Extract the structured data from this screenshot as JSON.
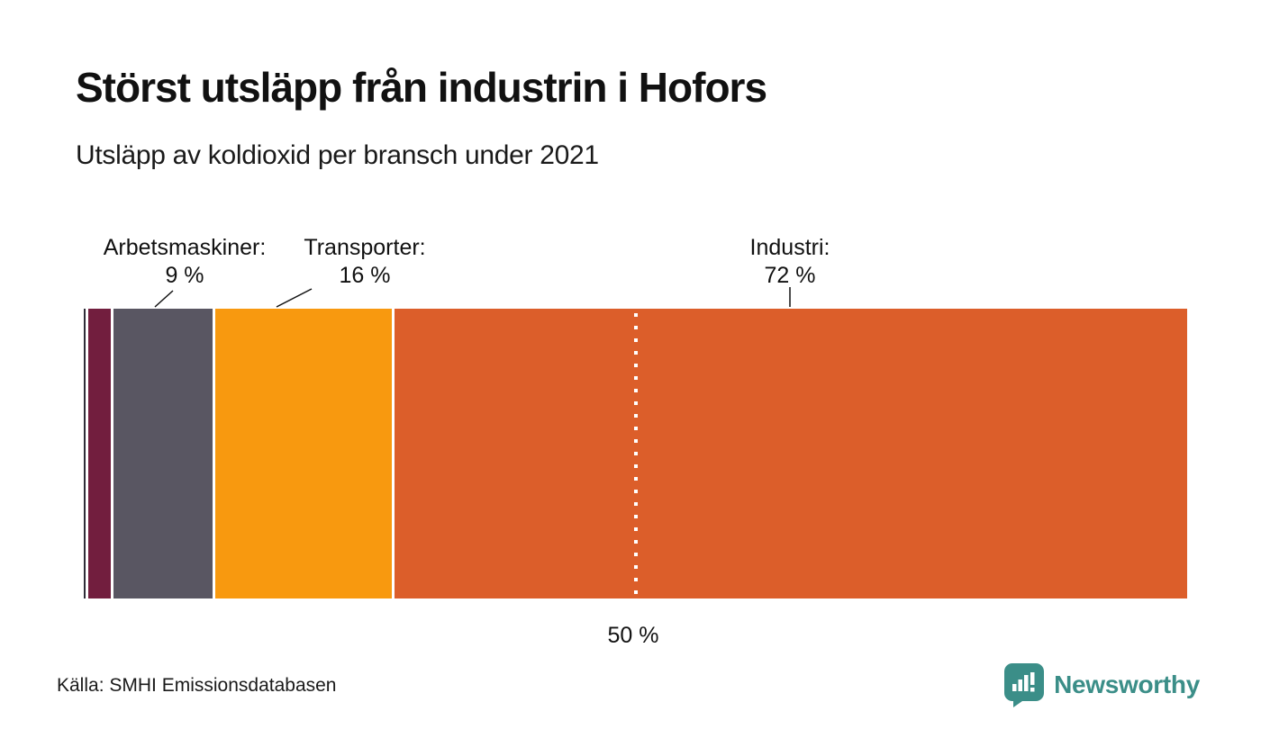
{
  "chart": {
    "title": "Störst utsläpp från industrin i Hofors",
    "subtitle": "Utsläpp av koldioxid per bransch under 2021",
    "reference_label": "50 %",
    "source": "Källa: SMHI Emissionsdatabasen"
  },
  "branding": {
    "name": "Newsworthy",
    "color": "#3b8e88"
  },
  "chart_data": {
    "type": "bar",
    "variant": "horizontal-stacked-single-bar",
    "title": "Störst utsläpp från industrin i Hofors",
    "subtitle": "Utsläpp av koldioxid per bransch under 2021",
    "unit": "%",
    "xlim": [
      0,
      100
    ],
    "segments": [
      {
        "label": null,
        "value": 0.2,
        "color": "#2f2d38"
      },
      {
        "label": null,
        "value": 2,
        "color": "#721e3e"
      },
      {
        "label": "Arbetsmaskiner",
        "value": 9,
        "color": "#595662"
      },
      {
        "label": "Transporter",
        "value": 16,
        "color": "#f8990f"
      },
      {
        "label": "Industri",
        "value": 72,
        "color": "#dc5e2a"
      }
    ],
    "annotations": [
      {
        "text": "Arbetsmaskiner:",
        "value_text": "9 %"
      },
      {
        "text": "Transporter:",
        "value_text": "16 %"
      },
      {
        "text": "Industri:",
        "value_text": "72 %"
      }
    ],
    "reference_line": {
      "value": 50,
      "label": "50 %",
      "style": "white-dotted"
    },
    "legend": "none",
    "source": "Källa: SMHI Emissionsdatabasen"
  }
}
